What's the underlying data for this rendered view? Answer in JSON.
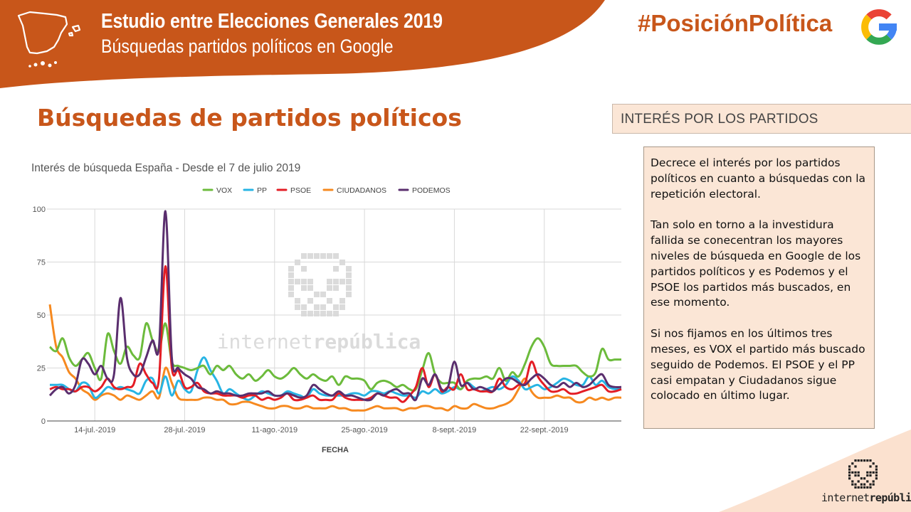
{
  "header": {
    "title": "Estudio entre Elecciones Generales 2019",
    "subtitle": "Búsquedas partidos políticos en Google",
    "hashtag": "#PosiciónPolítica"
  },
  "section_title": "Búsquedas de partidos políticos",
  "side_panel": {
    "header": "INTERÉS POR LOS PARTIDOS",
    "paragraphs": [
      "Decrece el interés por los partidos políticos en cuanto a búsquedas con la repetición electoral.",
      "Tan solo en torno a la investidura fallida se conecentran los mayores niveles de búsqueda en Google de los partidos políticos y es Podemos y el PSOE los partidos más buscados, en ese momento.",
      "Si nos fijamos en los últimos tres meses, es VOX el partido más buscado seguido de Podemos. El PSOE y el PP casi empatan y Ciudadanos sigue colocado en último lugar."
    ]
  },
  "brand": {
    "name_light": "internet",
    "name_bold": "república"
  },
  "watermark": {
    "light": "internet",
    "bold": "república"
  },
  "colors": {
    "accent": "#c8561a",
    "panel": "#fbe6d6"
  },
  "icons": {
    "map": "spain-map-icon",
    "google": "google-icon",
    "logo": "stormtrooper-icon"
  },
  "chart_data": {
    "type": "line",
    "title": "Interés de búsqueda España -  Desde el 7 de julio 2019",
    "xlabel": "FECHA",
    "ylabel": "",
    "ylim": [
      0,
      100
    ],
    "yticks": [
      0,
      25,
      50,
      75,
      100
    ],
    "grid": true,
    "legend_position": "top-center",
    "x": [
      "2019-07-07",
      "2019-07-08",
      "2019-07-09",
      "2019-07-10",
      "2019-07-11",
      "2019-07-12",
      "2019-07-13",
      "2019-07-14",
      "2019-07-15",
      "2019-07-16",
      "2019-07-17",
      "2019-07-18",
      "2019-07-19",
      "2019-07-20",
      "2019-07-21",
      "2019-07-22",
      "2019-07-23",
      "2019-07-24",
      "2019-07-25",
      "2019-07-26",
      "2019-07-27",
      "2019-07-28",
      "2019-07-29",
      "2019-07-30",
      "2019-07-31",
      "2019-08-01",
      "2019-08-02",
      "2019-08-03",
      "2019-08-04",
      "2019-08-05",
      "2019-08-06",
      "2019-08-07",
      "2019-08-08",
      "2019-08-09",
      "2019-08-10",
      "2019-08-11",
      "2019-08-12",
      "2019-08-13",
      "2019-08-14",
      "2019-08-15",
      "2019-08-16",
      "2019-08-17",
      "2019-08-18",
      "2019-08-19",
      "2019-08-20",
      "2019-08-21",
      "2019-08-22",
      "2019-08-23",
      "2019-08-24",
      "2019-08-25",
      "2019-08-26",
      "2019-08-27",
      "2019-08-28",
      "2019-08-29",
      "2019-08-30",
      "2019-08-31",
      "2019-09-01",
      "2019-09-02",
      "2019-09-03",
      "2019-09-04",
      "2019-09-05",
      "2019-09-06",
      "2019-09-07",
      "2019-09-08",
      "2019-09-09",
      "2019-09-10",
      "2019-09-11",
      "2019-09-12",
      "2019-09-13",
      "2019-09-14",
      "2019-09-15",
      "2019-09-16",
      "2019-09-17",
      "2019-09-18",
      "2019-09-19",
      "2019-09-20",
      "2019-09-21",
      "2019-09-22",
      "2019-09-23",
      "2019-09-24",
      "2019-09-25",
      "2019-09-26",
      "2019-09-27",
      "2019-09-28",
      "2019-09-29",
      "2019-09-30",
      "2019-10-01",
      "2019-10-02",
      "2019-10-03",
      "2019-10-04"
    ],
    "xtick_labels": [
      {
        "x": "2019-07-14",
        "label": "14-jul.-2019"
      },
      {
        "x": "2019-07-28",
        "label": "28-jul.-2019"
      },
      {
        "x": "2019-08-11",
        "label": "11-ago.-2019"
      },
      {
        "x": "2019-08-25",
        "label": "25-ago.-2019"
      },
      {
        "x": "2019-09-08",
        "label": "8-sept.-2019"
      },
      {
        "x": "2019-09-22",
        "label": "22-sept.-2019"
      }
    ],
    "series": [
      {
        "name": "VOX",
        "color": "#6cbb3c",
        "values": [
          35,
          33,
          39,
          30,
          26,
          29,
          32,
          25,
          20,
          41,
          33,
          27,
          35,
          31,
          30,
          46,
          38,
          33,
          46,
          28,
          26,
          25,
          24,
          25,
          26,
          22,
          26,
          24,
          26,
          22,
          20,
          22,
          19,
          21,
          24,
          21,
          20,
          22,
          25,
          22,
          20,
          22,
          20,
          19,
          21,
          17,
          21,
          20,
          20,
          19,
          15,
          18,
          19,
          18,
          16,
          17,
          15,
          15,
          24,
          32,
          22,
          18,
          18,
          18,
          15,
          19,
          20,
          20,
          21,
          20,
          25,
          19,
          23,
          21,
          27,
          35,
          39,
          35,
          27,
          26,
          26,
          26,
          26,
          23,
          21,
          23,
          34,
          29,
          29,
          29
        ]
      },
      {
        "name": "PP",
        "color": "#27b4e4",
        "values": [
          17,
          17,
          17,
          15,
          14,
          18,
          17,
          11,
          13,
          16,
          15,
          16,
          15,
          14,
          13,
          19,
          20,
          13,
          21,
          12,
          19,
          15,
          14,
          24,
          30,
          24,
          19,
          13,
          15,
          13,
          11,
          10,
          12,
          14,
          13,
          12,
          12,
          14,
          13,
          12,
          11,
          15,
          13,
          12,
          12,
          12,
          12,
          13,
          13,
          12,
          14,
          14,
          13,
          14,
          13,
          12,
          12,
          11,
          14,
          13,
          15,
          13,
          14,
          16,
          15,
          18,
          16,
          14,
          15,
          16,
          15,
          17,
          21,
          19,
          15,
          16,
          17,
          15,
          16,
          18,
          20,
          19,
          17,
          17,
          21,
          17,
          19,
          16,
          15,
          15
        ]
      },
      {
        "name": "PSOE",
        "color": "#e31d25",
        "values": [
          15,
          16,
          15,
          15,
          14,
          16,
          16,
          14,
          16,
          20,
          16,
          15,
          16,
          17,
          27,
          22,
          18,
          20,
          73,
          25,
          24,
          16,
          16,
          18,
          14,
          13,
          13,
          12,
          12,
          12,
          11,
          12,
          12,
          10,
          11,
          10,
          11,
          13,
          10,
          10,
          11,
          12,
          10,
          10,
          10,
          13,
          11,
          10,
          10,
          10,
          11,
          13,
          12,
          11,
          11,
          9,
          12,
          16,
          25,
          16,
          22,
          14,
          16,
          15,
          22,
          15,
          15,
          14,
          14,
          14,
          20,
          16,
          15,
          17,
          18,
          28,
          21,
          17,
          14,
          14,
          15,
          13,
          13,
          14,
          15,
          16,
          17,
          14,
          14,
          15
        ]
      },
      {
        "name": "CIUDADANOS",
        "color": "#f6891f",
        "values": [
          55,
          35,
          30,
          23,
          20,
          15,
          13,
          10,
          12,
          13,
          12,
          10,
          12,
          11,
          10,
          12,
          14,
          11,
          25,
          18,
          11,
          10,
          10,
          10,
          11,
          11,
          10,
          10,
          8,
          8,
          9,
          9,
          8,
          7,
          6,
          6,
          7,
          7,
          6,
          6,
          7,
          6,
          6,
          6,
          7,
          6,
          6,
          5,
          5,
          5,
          6,
          7,
          6,
          6,
          6,
          5,
          6,
          6,
          7,
          7,
          6,
          6,
          5,
          7,
          6,
          6,
          8,
          7,
          6,
          6,
          7,
          8,
          10,
          15,
          20,
          14,
          11,
          11,
          11,
          12,
          11,
          11,
          9,
          9,
          11,
          10,
          11,
          10,
          11,
          11
        ]
      },
      {
        "name": "PODEMOS",
        "color": "#5a2e6e",
        "values": [
          12,
          15,
          16,
          13,
          17,
          29,
          27,
          22,
          26,
          20,
          22,
          58,
          30,
          22,
          22,
          30,
          38,
          35,
          99,
          30,
          25,
          22,
          20,
          16,
          15,
          13,
          14,
          13,
          13,
          12,
          12,
          13,
          13,
          13,
          14,
          12,
          12,
          13,
          12,
          11,
          12,
          17,
          15,
          13,
          12,
          14,
          12,
          12,
          11,
          10,
          10,
          13,
          12,
          14,
          15,
          13,
          13,
          10,
          20,
          17,
          22,
          15,
          16,
          28,
          17,
          18,
          15,
          16,
          15,
          14,
          17,
          20,
          20,
          18,
          17,
          20,
          22,
          20,
          17,
          16,
          18,
          16,
          18,
          16,
          17,
          20,
          22,
          17,
          16,
          16
        ]
      }
    ]
  }
}
